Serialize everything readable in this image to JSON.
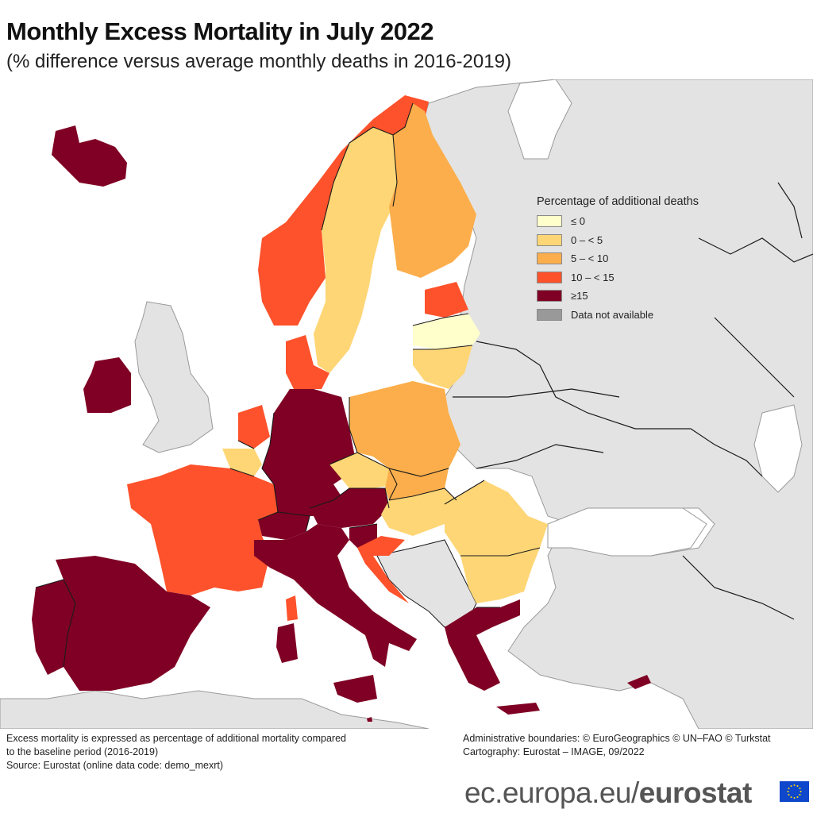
{
  "header": {
    "title": "Monthly Excess Mortality in July 2022",
    "subtitle": "(% difference versus average monthly deaths in 2016-2019)"
  },
  "legend": {
    "title": "Percentage of additional deaths",
    "items": [
      {
        "label": "≤ 0",
        "color": "#ffffcc"
      },
      {
        "label": "0 – < 5",
        "color": "#fed676"
      },
      {
        "label": "5 – < 10",
        "color": "#fbae4b"
      },
      {
        "label": "10 – < 15",
        "color": "#fd522b"
      },
      {
        "label": "≥15",
        "color": "#7f0024"
      },
      {
        "label": "Data not available",
        "color": "#999999"
      }
    ]
  },
  "map": {
    "base_colors": {
      "sea": "#ffffff",
      "non_eu": "#e3e3e3",
      "border": "#1a1a1a"
    },
    "countries": [
      {
        "name": "Iceland",
        "class": "≥15"
      },
      {
        "name": "Ireland",
        "class": "≥15"
      },
      {
        "name": "Norway",
        "class": "10 – < 15"
      },
      {
        "name": "Sweden",
        "class": "0 – < 5"
      },
      {
        "name": "Finland",
        "class": "5 – < 10"
      },
      {
        "name": "Estonia",
        "class": "10 – < 15"
      },
      {
        "name": "Latvia",
        "class": "≤ 0"
      },
      {
        "name": "Lithuania",
        "class": "0 – < 5"
      },
      {
        "name": "Denmark",
        "class": "10 – < 15"
      },
      {
        "name": "Netherlands",
        "class": "10 – < 15"
      },
      {
        "name": "Belgium",
        "class": "0 – < 5"
      },
      {
        "name": "Luxembourg",
        "class": "10 – < 15"
      },
      {
        "name": "Germany",
        "class": "≥15"
      },
      {
        "name": "Poland",
        "class": "5 – < 10"
      },
      {
        "name": "Czechia",
        "class": "0 – < 5"
      },
      {
        "name": "Slovakia",
        "class": "5 – < 10"
      },
      {
        "name": "Austria",
        "class": "≥15"
      },
      {
        "name": "Switzerland",
        "class": "≥15"
      },
      {
        "name": "Liechtenstein",
        "class": "≥15"
      },
      {
        "name": "Slovenia",
        "class": "≥15"
      },
      {
        "name": "Hungary",
        "class": "0 – < 5"
      },
      {
        "name": "Romania",
        "class": "0 – < 5"
      },
      {
        "name": "Bulgaria",
        "class": "0 – < 5"
      },
      {
        "name": "Croatia",
        "class": "10 – < 15"
      },
      {
        "name": "France",
        "class": "10 – < 15"
      },
      {
        "name": "Spain",
        "class": "≥15"
      },
      {
        "name": "Portugal",
        "class": "≥15"
      },
      {
        "name": "Italy",
        "class": "≥15"
      },
      {
        "name": "Malta",
        "class": "≥15"
      },
      {
        "name": "Greece",
        "class": "≥15"
      },
      {
        "name": "Cyprus",
        "class": "≥15"
      }
    ]
  },
  "footer": {
    "note_line1": "Excess mortality is expressed as percentage of additional mortality compared",
    "note_line2": "to the baseline period (2016-2019)",
    "source": "Source: Eurostat (online data code: demo_mexrt)",
    "boundaries": "Administrative boundaries: © EuroGeographics © UN–FAO © Turkstat",
    "cartography": "Cartography: Eurostat – IMAGE, 09/2022",
    "brand_prefix": "ec.europa.eu/",
    "brand_name": "eurostat"
  }
}
